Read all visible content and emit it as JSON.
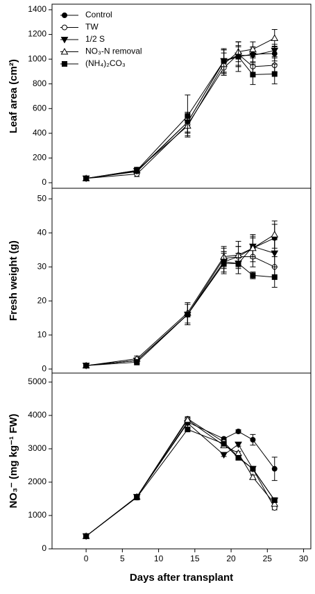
{
  "chart_data": [
    {
      "type": "line",
      "ylabel": "Leaf area (cm²)",
      "legend": "upper left",
      "x": [
        0,
        7,
        14,
        19,
        21,
        23,
        26
      ],
      "xlim": [
        -4.7,
        31
      ],
      "ylim": [
        -45,
        1445
      ],
      "yticks": [
        0,
        200,
        400,
        600,
        800,
        1000,
        1200,
        1400
      ],
      "series": [
        {
          "name": "Control",
          "color": "#000000",
          "marker": "circle",
          "filled": true,
          "values": [
            35,
            90,
            490,
            985,
            1020,
            1040,
            1045
          ],
          "errors": [
            10,
            20,
            80,
            90,
            80,
            60,
            60
          ]
        },
        {
          "name": "TW",
          "color": "#000000",
          "marker": "circle",
          "filled": false,
          "values": [
            35,
            70,
            470,
            930,
            1040,
            940,
            950
          ],
          "errors": [
            10,
            20,
            70,
            60,
            100,
            70,
            60
          ]
        },
        {
          "name": "1/2 S",
          "color": "#000000",
          "marker": "triangle-down",
          "filled": true,
          "values": [
            35,
            95,
            490,
            985,
            1030,
            1030,
            1070
          ],
          "errors": [
            10,
            20,
            80,
            100,
            80,
            60,
            50
          ]
        },
        {
          "name": "NO₃-N removal",
          "color": "#000000",
          "marker": "triangle-up",
          "filled": false,
          "values": [
            35,
            100,
            460,
            960,
            1060,
            1080,
            1170
          ],
          "errors": [
            10,
            25,
            80,
            90,
            80,
            60,
            70
          ]
        },
        {
          "name": "(NH₄)₂CO₃",
          "color": "#000000",
          "marker": "square",
          "filled": true,
          "values": [
            35,
            100,
            540,
            985,
            1020,
            875,
            880
          ],
          "errors": [
            10,
            20,
            170,
            90,
            120,
            80,
            80
          ]
        }
      ]
    },
    {
      "type": "line",
      "ylabel": "Fresh weight (g)",
      "x": [
        0,
        7,
        14,
        19,
        21,
        23,
        26
      ],
      "xlim": [
        -4.7,
        31
      ],
      "ylim": [
        -1.2,
        53.1
      ],
      "yticks": [
        0,
        10,
        20,
        30,
        40,
        50
      ],
      "series": [
        {
          "color": "#000000",
          "marker": "circle",
          "filled": true,
          "values": [
            1,
            2.5,
            16,
            31.5,
            33,
            35.5,
            38.5
          ],
          "errors": [
            0.3,
            0.8,
            3,
            3,
            3,
            3,
            4
          ]
        },
        {
          "color": "#000000",
          "marker": "circle",
          "filled": false,
          "values": [
            1,
            2.5,
            16,
            32.5,
            33,
            33,
            30
          ],
          "errors": [
            0.3,
            0.8,
            3,
            3,
            3,
            3,
            3
          ]
        },
        {
          "color": "#000000",
          "marker": "triangle-down",
          "filled": true,
          "values": [
            1,
            2.5,
            16,
            31.5,
            31,
            36,
            34
          ],
          "errors": [
            0.3,
            0.8,
            3,
            3,
            3,
            3,
            4
          ]
        },
        {
          "color": "#000000",
          "marker": "triangle-up",
          "filled": false,
          "values": [
            1,
            3,
            16.5,
            33,
            33.5,
            35.5,
            39.5
          ],
          "errors": [
            0.3,
            0.8,
            3,
            3,
            4,
            4,
            4
          ]
        },
        {
          "color": "#000000",
          "marker": "square",
          "filled": true,
          "values": [
            1,
            2,
            16,
            31,
            31,
            27.5,
            27
          ],
          "errors": [
            0.3,
            0.8,
            3,
            3,
            3,
            1,
            3
          ]
        }
      ]
    },
    {
      "type": "line",
      "ylabel": "NO₃⁻ (mg kg⁻¹ FW)",
      "xlabel": "Days after transplant",
      "x": [
        0,
        7,
        14,
        19,
        21,
        23,
        26
      ],
      "xlim": [
        -4.7,
        31
      ],
      "xticks": [
        0,
        5,
        10,
        15,
        20,
        25,
        30
      ],
      "ylim": [
        0,
        5270
      ],
      "yticks": [
        0,
        1000,
        2000,
        3000,
        4000,
        5000
      ],
      "series": [
        {
          "color": "#000000",
          "marker": "circle",
          "filled": true,
          "values": [
            380,
            1560,
            3800,
            3300,
            3520,
            3270,
            2400
          ],
          "errors": [
            30,
            40,
            60,
            40,
            50,
            160,
            350
          ]
        },
        {
          "color": "#000000",
          "marker": "circle",
          "filled": false,
          "values": [
            380,
            1560,
            3900,
            3200,
            2750,
            2400,
            1230
          ],
          "errors": [
            30,
            40,
            60,
            50,
            50,
            60,
            60
          ]
        },
        {
          "color": "#000000",
          "marker": "triangle-down",
          "filled": true,
          "values": [
            380,
            1560,
            3770,
            2820,
            3130,
            2400,
            1450
          ],
          "errors": [
            30,
            40,
            60,
            50,
            50,
            60,
            60
          ]
        },
        {
          "color": "#000000",
          "marker": "triangle-up",
          "filled": false,
          "values": [
            380,
            1560,
            3870,
            3100,
            2870,
            2150,
            1350
          ],
          "errors": [
            30,
            40,
            60,
            50,
            50,
            60,
            60
          ]
        },
        {
          "color": "#000000",
          "marker": "square",
          "filled": true,
          "values": [
            380,
            1540,
            3580,
            3150,
            2730,
            2400,
            1460
          ],
          "errors": [
            30,
            40,
            60,
            50,
            50,
            60,
            60
          ]
        }
      ]
    }
  ]
}
